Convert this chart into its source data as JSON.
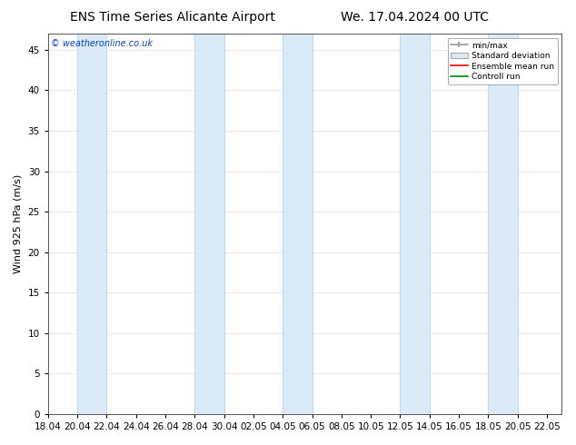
{
  "title_left": "ENS Time Series Alicante Airport",
  "title_right": "We. 17.04.2024 00 UTC",
  "ylabel": "Wind 925 hPa (m/s)",
  "watermark": "© weatheronline.co.uk",
  "ylim": [
    0,
    47
  ],
  "yticks": [
    0,
    5,
    10,
    15,
    20,
    25,
    30,
    35,
    40,
    45
  ],
  "x_tick_labels": [
    "18.04",
    "20.04",
    "22.04",
    "24.04",
    "26.04",
    "28.04",
    "30.04",
    "02.05",
    "04.05",
    "06.05",
    "08.05",
    "10.05",
    "12.05",
    "14.05",
    "16.05",
    "18.05",
    "20.05",
    "22.05"
  ],
  "x_tick_days_offset": [
    0,
    2,
    4,
    6,
    8,
    10,
    12,
    14,
    16,
    18,
    20,
    22,
    24,
    26,
    28,
    30,
    32,
    34
  ],
  "shaded_bands_days": [
    [
      2,
      4
    ],
    [
      10,
      12
    ],
    [
      16,
      18
    ],
    [
      24,
      26
    ],
    [
      30,
      32
    ]
  ],
  "band_color": "#daeaf7",
  "band_edge_color": "#aaccee",
  "background_color": "#ffffff",
  "plot_bg_color": "#ffffff",
  "grid_color": "#dddddd",
  "legend_entries": [
    "min/max",
    "Standard deviation",
    "Ensemble mean run",
    "Controll run"
  ],
  "legend_colors_line": [
    "#aaaaaa",
    "#aaaaaa",
    "#ff0000",
    "#008800"
  ],
  "legend_fill_color": "#daeaf7",
  "title_fontsize": 10,
  "ylabel_fontsize": 8,
  "tick_fontsize": 7.5
}
